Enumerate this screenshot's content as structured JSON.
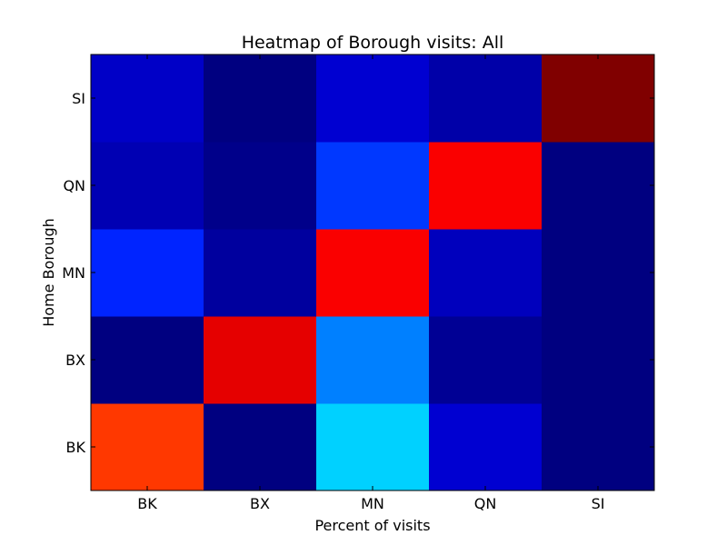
{
  "chart_data": {
    "type": "heatmap",
    "title": "Heatmap of Borough visits: All",
    "xlabel": "Percent of visits",
    "ylabel": "Home Borough",
    "x_categories": [
      "BK",
      "BX",
      "MN",
      "QN",
      "SI"
    ],
    "y_categories": [
      "BK",
      "BX",
      "MN",
      "QN",
      "SI"
    ],
    "colormap": "jet",
    "value_range": [
      0,
      1
    ],
    "values": [
      [
        0.82,
        0.0,
        0.33,
        0.08,
        0.0
      ],
      [
        0.0,
        0.9,
        0.25,
        0.02,
        0.0
      ],
      [
        0.16,
        0.03,
        0.88,
        0.06,
        0.0
      ],
      [
        0.05,
        0.01,
        0.18,
        0.88,
        0.0
      ],
      [
        0.07,
        0.0,
        0.08,
        0.04,
        1.0
      ]
    ],
    "grid": false,
    "colorbar": false
  }
}
